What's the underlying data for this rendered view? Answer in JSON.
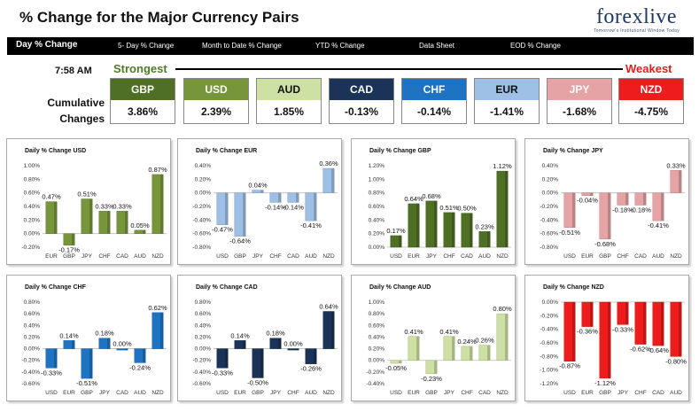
{
  "header": {
    "title": "% Change for the Major Currency Pairs",
    "logo_text": "forexlive",
    "logo_tagline": "Tomorrow's Institutional Window Today"
  },
  "nav": {
    "items": [
      {
        "label": "Day % Change",
        "active": true
      },
      {
        "label": "5- Day % Change",
        "active": false
      },
      {
        "label": "Month to Date % Change",
        "active": false
      },
      {
        "label": "YTD % Change",
        "active": false
      },
      {
        "label": "Data Sheet",
        "active": false
      },
      {
        "label": "EOD % Change",
        "active": false
      }
    ]
  },
  "summary": {
    "time": "7:58 AM",
    "strongest": "Strongest",
    "weakest": "Weakest",
    "cumulative_label_1": "Cumulative",
    "cumulative_label_2": "Changes",
    "currencies": [
      {
        "code": "GBP",
        "value": "3.86%",
        "color": "#4f6f25",
        "text": "#ffffff"
      },
      {
        "code": "USD",
        "value": "2.39%",
        "color": "#77953b",
        "text": "#ffffff"
      },
      {
        "code": "AUD",
        "value": "1.85%",
        "color": "#cfe0a4",
        "text": "#111111"
      },
      {
        "code": "CAD",
        "value": "-0.13%",
        "color": "#1a3356",
        "text": "#ffffff"
      },
      {
        "code": "CHF",
        "value": "-0.14%",
        "color": "#1e73c2",
        "text": "#ffffff"
      },
      {
        "code": "EUR",
        "value": "-1.41%",
        "color": "#9ec0e6",
        "text": "#111111"
      },
      {
        "code": "JPY",
        "value": "-1.68%",
        "color": "#e6a3a6",
        "text": "#ffffff"
      },
      {
        "code": "NZD",
        "value": "-4.75%",
        "color": "#ee1c1c",
        "text": "#ffffff"
      }
    ]
  },
  "chart_data": [
    {
      "type": "bar",
      "title": "Daily % Change USD",
      "color": "#77953b",
      "categories": [
        "EUR",
        "GBP",
        "JPY",
        "CHF",
        "CAD",
        "AUD",
        "NZD"
      ],
      "values": [
        0.47,
        -0.17,
        0.51,
        0.33,
        0.33,
        0.05,
        0.87
      ],
      "labels": [
        "0.47%",
        "-0.17%",
        "0.51%",
        "0.33%",
        "0.33%",
        "0.05%",
        "0.87%"
      ],
      "ylim": [
        -0.2,
        1.0
      ],
      "yticks": [
        "1.00%",
        "0.80%",
        "0.60%",
        "0.40%",
        "0.20%",
        "0.00%",
        "-0.20%"
      ]
    },
    {
      "type": "bar",
      "title": "Daily % Change EUR",
      "color": "#9ec0e6",
      "categories": [
        "USD",
        "GBP",
        "JPY",
        "CHF",
        "CAD",
        "AUD",
        "NZD"
      ],
      "values": [
        -0.47,
        -0.64,
        0.04,
        -0.14,
        -0.14,
        -0.41,
        0.36
      ],
      "labels": [
        "-0.47%",
        "-0.64%",
        "0.04%",
        "-0.14%",
        "-0.14%",
        "-0.41%",
        "0.36%"
      ],
      "ylim": [
        -0.8,
        0.4
      ],
      "yticks": [
        "0.40%",
        "0.20%",
        "0.00%",
        "-0.20%",
        "-0.40%",
        "-0.60%",
        "-0.80%"
      ]
    },
    {
      "type": "bar",
      "title": "Daily % Change GBP",
      "color": "#4f6f25",
      "categories": [
        "USD",
        "EUR",
        "JPY",
        "CHF",
        "CAD",
        "AUD",
        "NZD"
      ],
      "values": [
        0.17,
        0.64,
        0.68,
        0.51,
        0.5,
        0.23,
        1.12
      ],
      "labels": [
        "0.17%",
        "0.64%",
        "0.68%",
        "0.51%",
        "0.50%",
        "0.23%",
        "1.12%"
      ],
      "ylim": [
        0.0,
        1.2
      ],
      "yticks": [
        "1.20%",
        "1.00%",
        "0.80%",
        "0.60%",
        "0.40%",
        "0.20%",
        "0.00%"
      ]
    },
    {
      "type": "bar",
      "title": "Daily % Change JPY",
      "color": "#e6a3a6",
      "categories": [
        "USD",
        "EUR",
        "GBP",
        "CHF",
        "CAD",
        "AUD",
        "NZD"
      ],
      "values": [
        -0.51,
        -0.04,
        -0.68,
        -0.18,
        -0.18,
        -0.41,
        0.33
      ],
      "labels": [
        "-0.51%",
        "-0.04%",
        "-0.68%",
        "-0.18%",
        "-0.18%",
        "-0.41%",
        "0.33%"
      ],
      "ylim": [
        -0.8,
        0.4
      ],
      "yticks": [
        "0.40%",
        "0.20%",
        "0.00%",
        "-0.20%",
        "-0.40%",
        "-0.60%",
        "-0.80%"
      ]
    },
    {
      "type": "bar",
      "title": "Daily % Change CHF",
      "color": "#1e73c2",
      "categories": [
        "USD",
        "EUR",
        "GBP",
        "JPY",
        "CAD",
        "AUD",
        "NZD"
      ],
      "values": [
        -0.33,
        0.14,
        -0.51,
        0.18,
        0.0,
        -0.24,
        0.62
      ],
      "labels": [
        "-0.33%",
        "0.14%",
        "-0.51%",
        "0.18%",
        "0.00%",
        "-0.24%",
        "0.62%"
      ],
      "ylim": [
        -0.6,
        0.8
      ],
      "yticks": [
        "0.80%",
        "0.60%",
        "0.40%",
        "0.20%",
        "0.00%",
        "-0.20%",
        "-0.40%",
        "-0.60%"
      ]
    },
    {
      "type": "bar",
      "title": "Daily % Change CAD",
      "color": "#1a3356",
      "categories": [
        "USD",
        "EUR",
        "GBP",
        "JPY",
        "CHF",
        "AUD",
        "NZD"
      ],
      "values": [
        -0.33,
        0.14,
        -0.5,
        0.18,
        0.0,
        -0.26,
        0.64
      ],
      "labels": [
        "-0.33%",
        "0.14%",
        "-0.50%",
        "0.18%",
        "0.00%",
        "-0.26%",
        "0.64%"
      ],
      "ylim": [
        -0.6,
        0.8
      ],
      "yticks": [
        "0.80%",
        "0.60%",
        "0.40%",
        "0.20%",
        "0.00%",
        "-0.20%",
        "-0.40%",
        "-0.60%"
      ]
    },
    {
      "type": "bar",
      "title": "Daily % Change AUD",
      "color": "#cfe0a4",
      "categories": [
        "USD",
        "EUR",
        "GBP",
        "JPY",
        "CHF",
        "CAD",
        "NZD"
      ],
      "values": [
        -0.05,
        0.41,
        -0.23,
        0.41,
        0.24,
        0.26,
        0.8
      ],
      "labels": [
        "-0.05%",
        "0.41%",
        "-0.23%",
        "0.41%",
        "0.24%",
        "0.26%",
        "0.80%"
      ],
      "ylim": [
        -0.4,
        1.0
      ],
      "yticks": [
        "1.00%",
        "0.80%",
        "0.60%",
        "0.40%",
        "0.20%",
        "0.00%",
        "-0.20%",
        "-0.40%"
      ]
    },
    {
      "type": "bar",
      "title": "Daily % Change NZD",
      "color": "#ee1c1c",
      "categories": [
        "USD",
        "EUR",
        "GBP",
        "JPY",
        "CHF",
        "CAD",
        "AUD"
      ],
      "values": [
        -0.87,
        -0.36,
        -1.12,
        -0.33,
        -0.62,
        -0.64,
        -0.8
      ],
      "labels": [
        "-0.87%",
        "-0.36%",
        "-1.12%",
        "-0.33%",
        "-0.62%",
        "-0.64%",
        "-0.80%"
      ],
      "ylim": [
        -1.2,
        0.0
      ],
      "yticks": [
        "0.00%",
        "-0.20%",
        "-0.40%",
        "-0.60%",
        "-0.80%",
        "-1.00%",
        "-1.20%"
      ]
    }
  ]
}
